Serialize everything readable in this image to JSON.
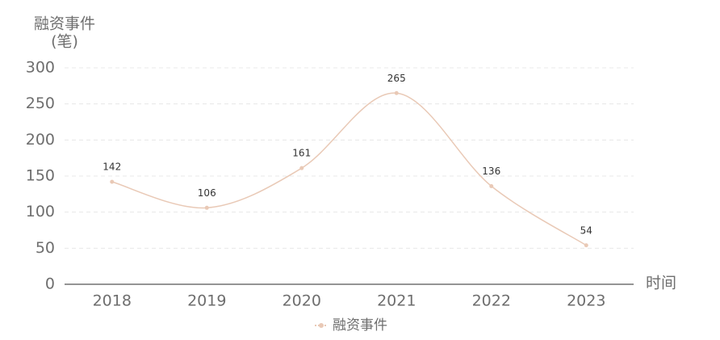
{
  "chart_data": {
    "type": "line",
    "ylabel": [
      "融资事件",
      "(笔)"
    ],
    "xlabel": "时间",
    "categories": [
      "2018",
      "2019",
      "2020",
      "2021",
      "2022",
      "2023"
    ],
    "series": [
      {
        "name": "融资事件",
        "color": "#e9c9b6",
        "values": [
          142,
          106,
          161,
          265,
          136,
          54
        ]
      }
    ],
    "ylim": [
      0,
      300
    ],
    "yticks": [
      0,
      50,
      100,
      150,
      200,
      250,
      300
    ],
    "grid": true,
    "smooth": true,
    "legend": "bottom"
  }
}
